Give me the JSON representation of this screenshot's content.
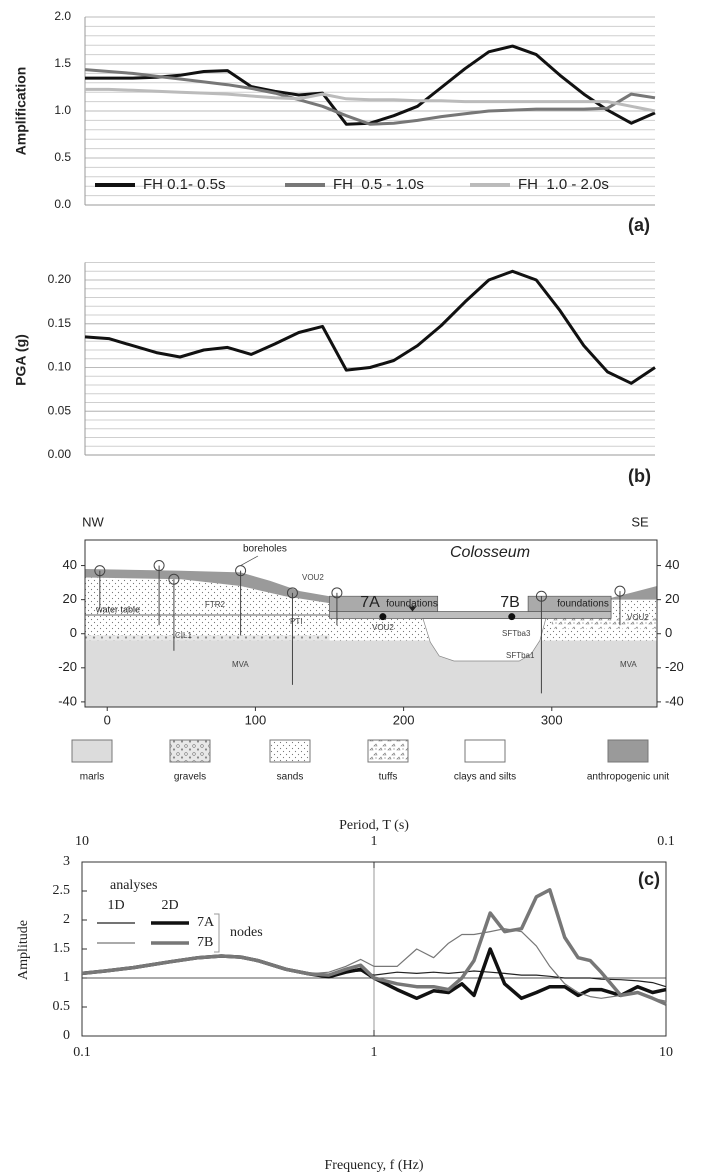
{
  "chart_data": [
    {
      "type": "line",
      "y_label": "Amplification",
      "panel_label": "(a)",
      "ylim": [
        0,
        2
      ],
      "yticks": [
        {
          "value": 0,
          "label": "0.0"
        },
        0.5,
        {
          "value": 1,
          "label": "1.0"
        },
        1.5,
        {
          "value": 2,
          "label": "2.0"
        }
      ],
      "grid": true,
      "grid_step": 0.1,
      "legend_position": "bottom",
      "categories": [
        null,
        null,
        null,
        null,
        null,
        null,
        null,
        null,
        null,
        null,
        null,
        null,
        null,
        null,
        null,
        null,
        null,
        null,
        null,
        null,
        null,
        null,
        null,
        null,
        null
      ],
      "series": [
        {
          "name": "FH 0.1- 0.5s",
          "color": "#111111",
          "values": [
            1.35,
            1.35,
            1.35,
            1.36,
            1.38,
            1.42,
            1.43,
            1.26,
            1.21,
            1.17,
            1.19,
            0.86,
            0.87,
            0.95,
            1.05,
            1.25,
            1.45,
            1.63,
            1.69,
            1.6,
            1.38,
            1.18,
            1.01,
            0.87,
            0.98
          ]
        },
        {
          "name": "FH  0.5 - 1.0s",
          "color": "#777777",
          "values": [
            1.44,
            1.42,
            1.4,
            1.37,
            1.34,
            1.31,
            1.28,
            1.24,
            1.19,
            1.12,
            1.05,
            0.95,
            0.86,
            0.87,
            0.9,
            0.94,
            0.97,
            1.0,
            1.01,
            1.02,
            1.02,
            1.02,
            1.03,
            1.18,
            1.14
          ]
        },
        {
          "name": "FH  1.0 - 2.0s",
          "color": "#bbbbbb",
          "values": [
            1.23,
            1.23,
            1.22,
            1.21,
            1.2,
            1.19,
            1.18,
            1.16,
            1.14,
            1.13,
            1.18,
            1.13,
            1.12,
            1.12,
            1.11,
            1.11,
            1.1,
            1.1,
            1.1,
            1.1,
            1.1,
            1.1,
            1.1,
            1.05,
            1.0
          ]
        }
      ]
    },
    {
      "type": "line",
      "y_label": "PGA (g)",
      "panel_label": "(b)",
      "ylim": [
        0,
        0.22
      ],
      "yticks": [
        {
          "value": 0,
          "label": "0.00"
        },
        0.05,
        {
          "value": 0.1,
          "label": "0.10"
        },
        0.15,
        {
          "value": 0.2,
          "label": "0.20"
        }
      ],
      "grid": true,
      "grid_step": 0.01,
      "categories": [
        null,
        null,
        null,
        null,
        null,
        null,
        null,
        null,
        null,
        null,
        null,
        null,
        null,
        null,
        null,
        null,
        null,
        null,
        null,
        null,
        null,
        null,
        null,
        null,
        null
      ],
      "series": [
        {
          "color": "#111111",
          "values": [
            0.135,
            0.133,
            0.125,
            0.117,
            0.112,
            0.12,
            0.123,
            0.115,
            0.127,
            0.14,
            0.147,
            0.097,
            0.1,
            0.108,
            0.125,
            0.148,
            0.175,
            0.2,
            0.21,
            0.2,
            0.165,
            0.125,
            0.095,
            0.082,
            0.1
          ]
        }
      ]
    },
    {
      "type": "cross-section",
      "xlim": [
        -15,
        371
      ],
      "ylim": [
        -43,
        55
      ],
      "xticks": [
        0,
        100,
        200,
        300
      ],
      "yticks": [
        -40,
        -20,
        0,
        20,
        40
      ],
      "y2ticks": [
        -40,
        -20,
        0,
        20,
        40
      ],
      "labels": {
        "nw": "NW",
        "se": "SE",
        "title": "Colosseum",
        "boreholes": "boreholes",
        "water_table": "water table",
        "node_a": "7A",
        "node_b": "7B",
        "foundations_a": "foundations",
        "foundations_b": "foundations",
        "units": [
          "FTR2",
          "PTI",
          "CIL1",
          "MVA",
          "MVA",
          "VOU2",
          "VOU2",
          "SFTba3",
          "SFTba1",
          "VOU2"
        ]
      },
      "legend": [
        {
          "label": "marls",
          "fill": "#dcdcdc"
        },
        {
          "label": "gravels",
          "fill": "gravel"
        },
        {
          "label": "sands",
          "fill": "sand"
        },
        {
          "label": "tuffs",
          "fill": "tuff"
        },
        {
          "label": "clays and silts",
          "fill": "#ffffff"
        },
        {
          "label": "anthropogenic unit",
          "fill": "#9a9a9a"
        }
      ]
    },
    {
      "type": "line",
      "x_scale": "log",
      "panel_label": "(c)",
      "x_label": "Frequency, f (Hz)",
      "y_label": "Amplitude",
      "top_axis": {
        "label": "Period, T (s)",
        "ticks": [
          10,
          1,
          0.1
        ]
      },
      "xlim": [
        0.1,
        10
      ],
      "ylim": [
        0,
        3
      ],
      "xticks": [
        0.1,
        1,
        10
      ],
      "yticks": [
        0,
        0.5,
        1,
        1.5,
        2,
        2.5,
        3
      ],
      "hlines": [
        1
      ],
      "vlines": [
        1
      ],
      "x": [
        0.1,
        0.12,
        0.15,
        0.2,
        0.25,
        0.3,
        0.35,
        0.4,
        0.5,
        0.6,
        0.7,
        0.8,
        0.9,
        1,
        1.2,
        1.4,
        1.6,
        1.8,
        2,
        2.2,
        2.5,
        2.8,
        3.2,
        3.6,
        4,
        4.5,
        5,
        5.5,
        6,
        7,
        8,
        9,
        10
      ],
      "series": [
        {
          "color": "#222222",
          "width": 1.2,
          "values": [
            1.08,
            1.12,
            1.18,
            1.28,
            1.35,
            1.38,
            1.36,
            1.3,
            1.15,
            1.07,
            1.05,
            1.1,
            1.12,
            1.05,
            1.1,
            1.08,
            1.1,
            1.08,
            1.1,
            1.12,
            1.1,
            1.08,
            1.05,
            1.05,
            1.03,
            1,
            1,
            1,
            0.98,
            0.97,
            0.95,
            0.92,
            0.85
          ]
        },
        {
          "color": "#111111",
          "width": 3.5,
          "values": [
            1.08,
            1.12,
            1.18,
            1.28,
            1.35,
            1.38,
            1.36,
            1.3,
            1.15,
            1.07,
            1.02,
            1.1,
            1.15,
            1,
            0.8,
            0.65,
            0.78,
            0.75,
            0.9,
            0.7,
            1.5,
            0.9,
            0.65,
            0.75,
            0.85,
            0.85,
            0.7,
            0.8,
            0.8,
            0.7,
            0.85,
            0.75,
            0.8
          ]
        },
        {
          "color": "#777777",
          "width": 1.2,
          "values": [
            1.08,
            1.12,
            1.18,
            1.28,
            1.35,
            1.38,
            1.36,
            1.3,
            1.15,
            1.07,
            1.1,
            1.2,
            1.32,
            1.2,
            1.2,
            1.5,
            1.35,
            1.6,
            1.75,
            1.75,
            1.8,
            1.85,
            1.8,
            1.55,
            1.2,
            0.9,
            0.75,
            0.68,
            0.65,
            0.7,
            0.75,
            0.65,
            0.6
          ]
        },
        {
          "color": "#777777",
          "width": 3.5,
          "values": [
            1.08,
            1.12,
            1.18,
            1.28,
            1.35,
            1.38,
            1.36,
            1.3,
            1.15,
            1.07,
            1.05,
            1.15,
            1.22,
            1,
            0.9,
            0.85,
            0.85,
            0.8,
            1,
            1.3,
            2.12,
            1.8,
            1.85,
            2.4,
            2.52,
            1.7,
            1.35,
            1.3,
            1.1,
            0.7,
            0.75,
            0.65,
            0.55
          ]
        }
      ],
      "legend": {
        "title": "analyses",
        "columns": [
          "1D",
          "2D"
        ],
        "rows": [
          "7A",
          "7B"
        ],
        "group": "nodes"
      }
    }
  ]
}
